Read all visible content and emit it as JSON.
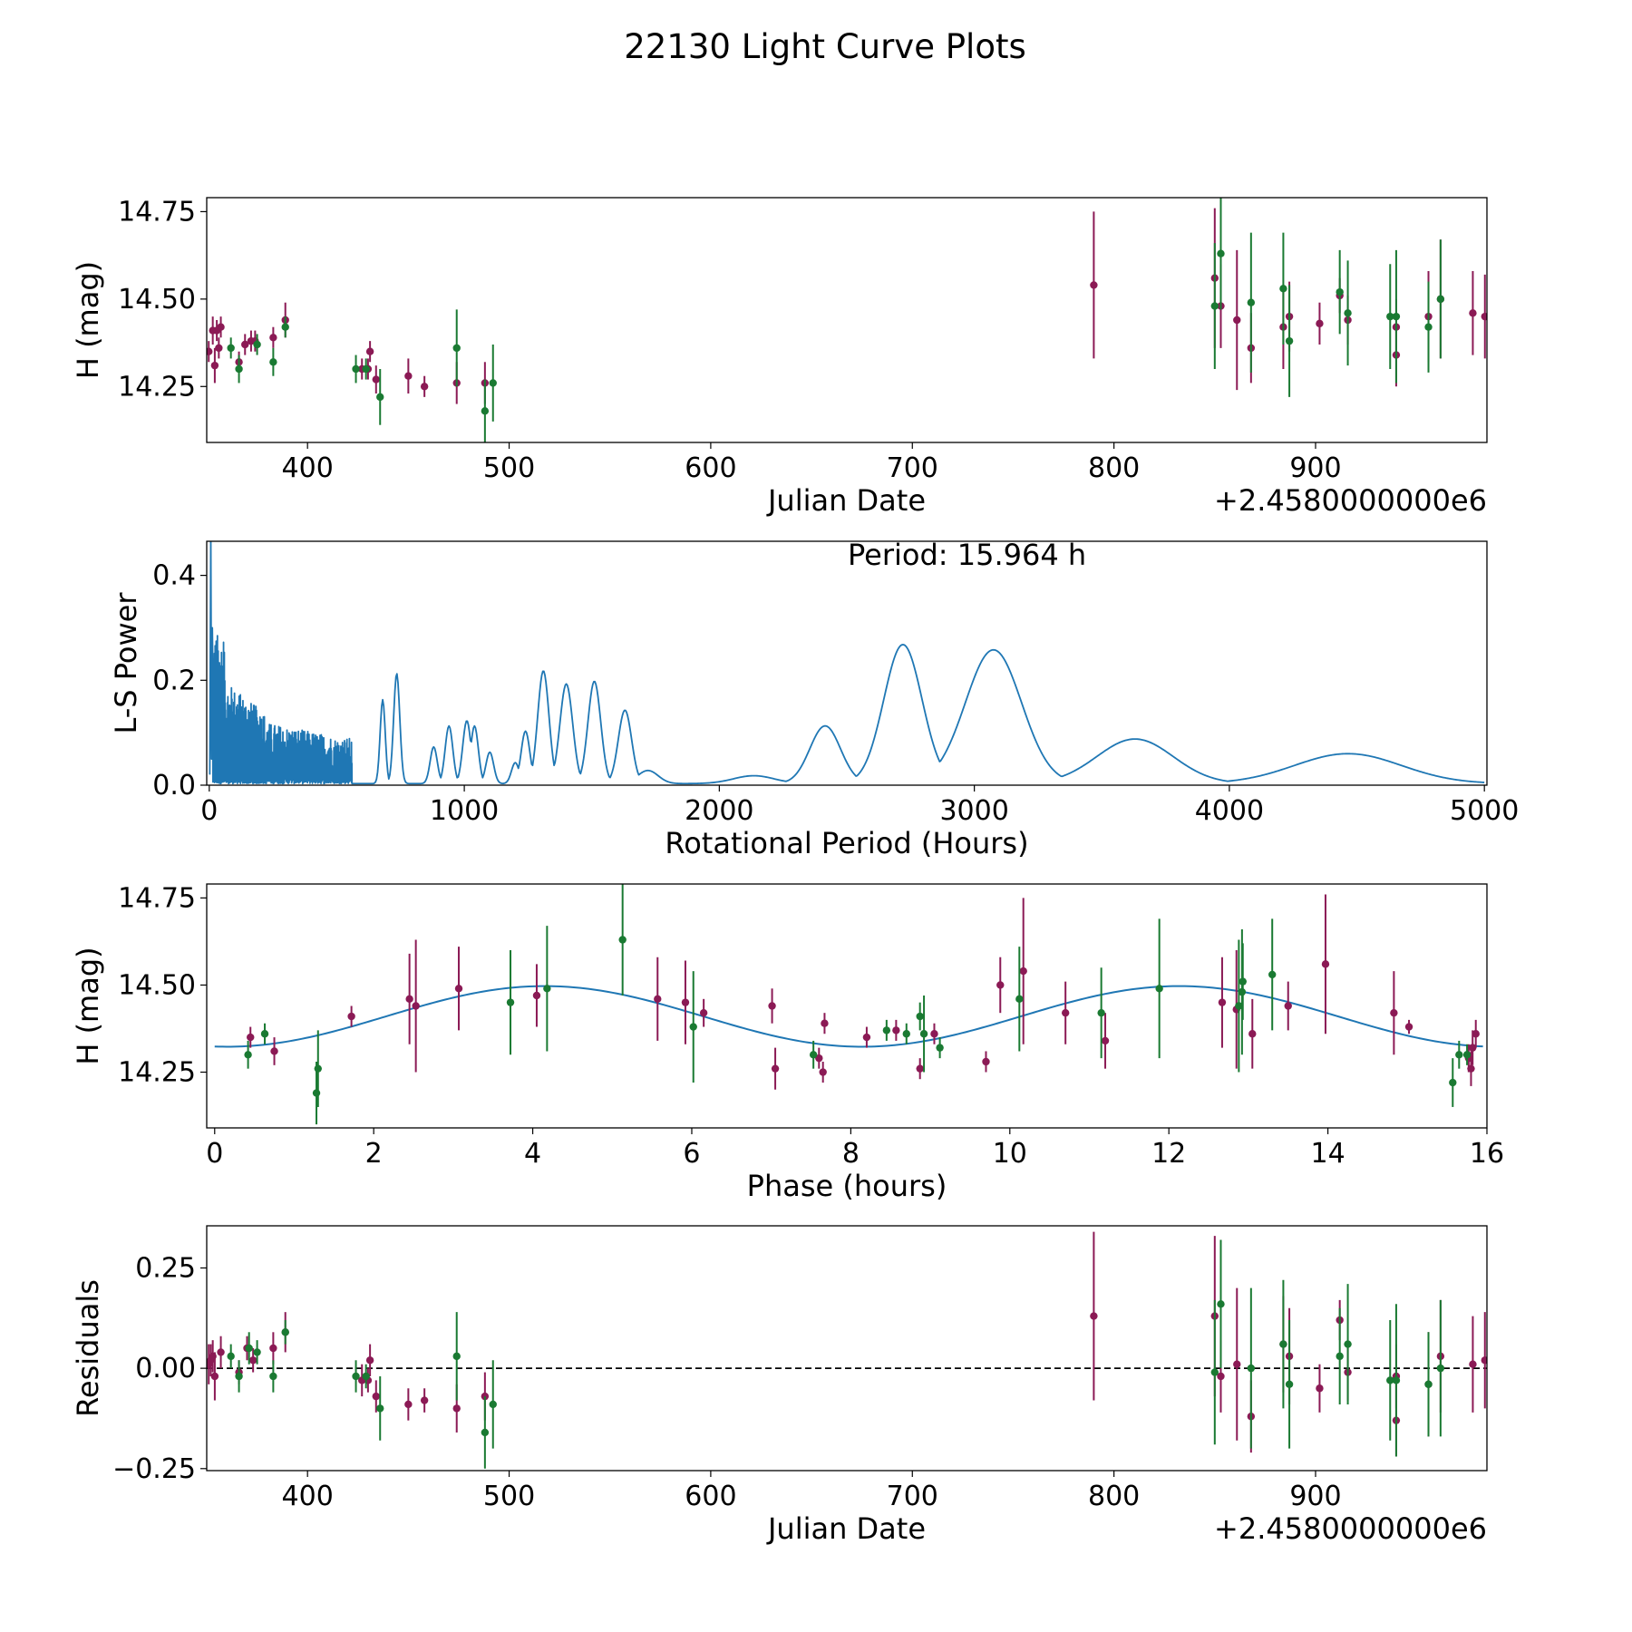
{
  "figure": {
    "title": "22130 Light Curve Plots",
    "colors": {
      "purple": "#8b1a55",
      "green": "#1a7a32",
      "curve": "#1f77b4",
      "axis": "#000000"
    }
  },
  "chart_data": [
    {
      "type": "errorbar-scatter",
      "name": "light-curve",
      "xlabel": "Julian Date",
      "ylabel": "H (mag)",
      "offset_text": "+2.4580000000e6",
      "xlim": [
        350,
        985
      ],
      "ylim": [
        14.09,
        14.79
      ],
      "xticks": [
        400,
        500,
        600,
        700,
        800,
        900
      ],
      "yticks": [
        14.25,
        14.5,
        14.75
      ],
      "series": [
        {
          "name": "purple",
          "color": "#8b1a55",
          "points": [
            [
              351,
              14.35,
              0.03
            ],
            [
              353,
              14.41,
              0.04
            ],
            [
              354,
              14.31,
              0.05
            ],
            [
              355,
              14.41,
              0.03
            ],
            [
              356,
              14.36,
              0.03
            ],
            [
              357,
              14.42,
              0.03
            ],
            [
              366,
              14.32,
              0.03
            ],
            [
              369,
              14.37,
              0.03
            ],
            [
              372,
              14.38,
              0.03
            ],
            [
              374,
              14.38,
              0.03
            ],
            [
              383,
              14.39,
              0.03
            ],
            [
              389,
              14.44,
              0.05
            ],
            [
              427,
              14.3,
              0.03
            ],
            [
              430,
              14.3,
              0.03
            ],
            [
              431,
              14.35,
              0.03
            ],
            [
              434,
              14.27,
              0.04
            ],
            [
              450,
              14.28,
              0.05
            ],
            [
              458,
              14.25,
              0.03
            ],
            [
              474,
              14.26,
              0.06
            ],
            [
              488,
              14.26,
              0.06
            ],
            [
              790,
              14.54,
              0.21
            ],
            [
              850,
              14.56,
              0.2
            ],
            [
              853,
              14.48,
              0.12
            ],
            [
              861,
              14.44,
              0.2
            ],
            [
              868,
              14.36,
              0.1
            ],
            [
              884,
              14.42,
              0.12
            ],
            [
              887,
              14.45,
              0.1
            ],
            [
              902,
              14.43,
              0.06
            ],
            [
              912,
              14.51,
              0.05
            ],
            [
              916,
              14.44,
              0.07
            ],
            [
              940,
              14.42,
              0.08
            ],
            [
              940,
              14.34,
              0.09
            ],
            [
              956,
              14.45,
              0.13
            ],
            [
              962,
              14.5,
              0.17
            ],
            [
              978,
              14.46,
              0.12
            ],
            [
              984,
              14.45,
              0.12
            ]
          ]
        },
        {
          "name": "green",
          "color": "#1a7a32",
          "points": [
            [
              362,
              14.36,
              0.03
            ],
            [
              366,
              14.3,
              0.04
            ],
            [
              375,
              14.37,
              0.03
            ],
            [
              383,
              14.32,
              0.04
            ],
            [
              389,
              14.42,
              0.03
            ],
            [
              424,
              14.3,
              0.04
            ],
            [
              429,
              14.3,
              0.03
            ],
            [
              436,
              14.22,
              0.08
            ],
            [
              474,
              14.36,
              0.11
            ],
            [
              488,
              14.18,
              0.09
            ],
            [
              492,
              14.26,
              0.11
            ],
            [
              850,
              14.48,
              0.18
            ],
            [
              853,
              14.63,
              0.16
            ],
            [
              868,
              14.49,
              0.2
            ],
            [
              884,
              14.53,
              0.16
            ],
            [
              887,
              14.38,
              0.16
            ],
            [
              912,
              14.52,
              0.12
            ],
            [
              916,
              14.46,
              0.15
            ],
            [
              937,
              14.45,
              0.15
            ],
            [
              940,
              14.45,
              0.19
            ],
            [
              956,
              14.42,
              0.13
            ],
            [
              962,
              14.5,
              0.17
            ]
          ]
        }
      ]
    },
    {
      "type": "line",
      "name": "periodogram",
      "xlabel": "Rotational Period (Hours)",
      "ylabel": "L-S Power",
      "annotation": "Period: 15.964 h",
      "xlim": [
        -10,
        5010
      ],
      "ylim": [
        0.0,
        0.465
      ],
      "xticks": [
        0,
        1000,
        2000,
        3000,
        4000,
        5000
      ],
      "yticks": [
        0.0,
        0.2,
        0.4
      ],
      "peaks": [
        [
          735,
          0.21,
          12
        ],
        [
          680,
          0.16,
          10
        ],
        [
          880,
          0.07,
          14
        ],
        [
          940,
          0.11,
          15
        ],
        [
          1010,
          0.12,
          16
        ],
        [
          1040,
          0.11,
          15
        ],
        [
          1100,
          0.06,
          15
        ],
        [
          1200,
          0.04,
          15
        ],
        [
          1240,
          0.1,
          17
        ],
        [
          1310,
          0.215,
          22
        ],
        [
          1400,
          0.19,
          25
        ],
        [
          1510,
          0.195,
          25
        ],
        [
          1630,
          0.14,
          26
        ],
        [
          1720,
          0.025,
          40
        ],
        [
          2135,
          0.015,
          80
        ],
        [
          2415,
          0.11,
          60
        ],
        [
          2720,
          0.265,
          75
        ],
        [
          3075,
          0.255,
          110
        ],
        [
          3630,
          0.085,
          150
        ],
        [
          4465,
          0.057,
          210
        ]
      ]
    },
    {
      "type": "errorbar-scatter",
      "name": "phased-curve",
      "xlabel": "Phase (hours)",
      "ylabel": "H (mag)",
      "xlim": [
        -0.1,
        16.0
      ],
      "ylim": [
        14.09,
        14.79
      ],
      "xticks": [
        0,
        2,
        4,
        6,
        8,
        10,
        12,
        14,
        16
      ],
      "yticks": [
        14.25,
        14.5,
        14.75
      ],
      "model": {
        "mean": 14.41,
        "amplitude": 0.087,
        "period": 7.982,
        "phase_of_max": 4.15
      },
      "series": [
        {
          "name": "purple",
          "color": "#8b1a55",
          "points": [
            [
              0.45,
              14.35,
              0.03
            ],
            [
              0.75,
              14.31,
              0.04
            ],
            [
              1.72,
              14.41,
              0.03
            ],
            [
              2.45,
              14.46,
              0.13
            ],
            [
              2.53,
              14.44,
              0.19
            ],
            [
              3.07,
              14.49,
              0.12
            ],
            [
              4.05,
              14.47,
              0.09
            ],
            [
              5.57,
              14.46,
              0.12
            ],
            [
              5.92,
              14.45,
              0.12
            ],
            [
              6.15,
              14.42,
              0.04
            ],
            [
              7.01,
              14.44,
              0.05
            ],
            [
              7.05,
              14.26,
              0.06
            ],
            [
              7.6,
              14.29,
              0.03
            ],
            [
              7.65,
              14.25,
              0.03
            ],
            [
              7.67,
              14.39,
              0.03
            ],
            [
              8.2,
              14.35,
              0.03
            ],
            [
              8.57,
              14.37,
              0.03
            ],
            [
              8.87,
              14.26,
              0.03
            ],
            [
              9.05,
              14.36,
              0.03
            ],
            [
              9.7,
              14.28,
              0.03
            ],
            [
              9.88,
              14.5,
              0.08
            ],
            [
              10.17,
              14.54,
              0.21
            ],
            [
              10.7,
              14.42,
              0.09
            ],
            [
              11.2,
              14.34,
              0.08
            ],
            [
              12.67,
              14.45,
              0.13
            ],
            [
              12.85,
              14.43,
              0.17
            ],
            [
              13.05,
              14.36,
              0.1
            ],
            [
              13.5,
              14.44,
              0.07
            ],
            [
              13.97,
              14.56,
              0.2
            ],
            [
              14.83,
              14.42,
              0.12
            ],
            [
              15.02,
              14.38,
              0.02
            ],
            [
              15.77,
              14.29,
              0.04
            ],
            [
              15.8,
              14.26,
              0.05
            ],
            [
              15.82,
              14.32,
              0.05
            ],
            [
              15.86,
              14.36,
              0.04
            ]
          ]
        },
        {
          "name": "green",
          "color": "#1a7a32",
          "points": [
            [
              0.42,
              14.3,
              0.04
            ],
            [
              0.63,
              14.36,
              0.03
            ],
            [
              1.28,
              14.19,
              0.09
            ],
            [
              1.3,
              14.26,
              0.11
            ],
            [
              3.72,
              14.45,
              0.15
            ],
            [
              4.18,
              14.49,
              0.18
            ],
            [
              5.13,
              14.63,
              0.16
            ],
            [
              6.02,
              14.38,
              0.16
            ],
            [
              7.53,
              14.3,
              0.04
            ],
            [
              8.45,
              14.37,
              0.03
            ],
            [
              8.7,
              14.36,
              0.03
            ],
            [
              8.87,
              14.41,
              0.04
            ],
            [
              8.92,
              14.36,
              0.11
            ],
            [
              9.12,
              14.32,
              0.03
            ],
            [
              10.12,
              14.46,
              0.15
            ],
            [
              11.15,
              14.42,
              0.13
            ],
            [
              11.88,
              14.49,
              0.2
            ],
            [
              12.88,
              14.44,
              0.19
            ],
            [
              12.92,
              14.48,
              0.18
            ],
            [
              12.93,
              14.51,
              0.11
            ],
            [
              13.3,
              14.53,
              0.16
            ],
            [
              15.57,
              14.22,
              0.07
            ],
            [
              15.65,
              14.3,
              0.04
            ],
            [
              15.75,
              14.3,
              0.03
            ]
          ]
        }
      ]
    },
    {
      "type": "errorbar-scatter",
      "name": "residuals",
      "xlabel": "Julian Date",
      "ylabel": "Residuals",
      "offset_text": "+2.4580000000e6",
      "xlim": [
        350,
        985
      ],
      "ylim": [
        -0.255,
        0.355
      ],
      "xticks": [
        400,
        500,
        600,
        700,
        800,
        900
      ],
      "yticks": [
        0.25,
        0.0,
        -0.25
      ],
      "ytick_labels": [
        "0.25",
        "0.00",
        "−0.25"
      ],
      "reference_line": 0.0,
      "series": [
        {
          "name": "purple",
          "color": "#8b1a55",
          "points": [
            [
              351,
              0.01,
              0.05
            ],
            [
              352,
              0.02,
              0.04
            ],
            [
              353,
              0.03,
              0.04
            ],
            [
              354,
              -0.02,
              0.06
            ],
            [
              357,
              0.04,
              0.04
            ],
            [
              366,
              -0.01,
              0.03
            ],
            [
              370,
              0.05,
              0.03
            ],
            [
              373,
              0.02,
              0.03
            ],
            [
              383,
              0.05,
              0.04
            ],
            [
              389,
              0.09,
              0.05
            ],
            [
              427,
              -0.03,
              0.04
            ],
            [
              430,
              -0.03,
              0.03
            ],
            [
              431,
              0.02,
              0.04
            ],
            [
              434,
              -0.07,
              0.04
            ],
            [
              450,
              -0.09,
              0.04
            ],
            [
              458,
              -0.08,
              0.03
            ],
            [
              474,
              -0.1,
              0.06
            ],
            [
              488,
              -0.07,
              0.06
            ],
            [
              790,
              0.13,
              0.21
            ],
            [
              850,
              0.13,
              0.2
            ],
            [
              853,
              -0.02,
              0.09
            ],
            [
              861,
              0.01,
              0.19
            ],
            [
              868,
              -0.12,
              0.09
            ],
            [
              884,
              0.06,
              0.12
            ],
            [
              887,
              0.03,
              0.12
            ],
            [
              902,
              -0.05,
              0.06
            ],
            [
              912,
              0.12,
              0.05
            ],
            [
              916,
              -0.01,
              0.07
            ],
            [
              940,
              -0.02,
              0.08
            ],
            [
              940,
              -0.13,
              0.09
            ],
            [
              956,
              -0.04,
              0.13
            ],
            [
              962,
              0.03,
              0.14
            ],
            [
              978,
              0.01,
              0.12
            ],
            [
              984,
              0.02,
              0.12
            ]
          ]
        },
        {
          "name": "green",
          "color": "#1a7a32",
          "points": [
            [
              362,
              0.03,
              0.03
            ],
            [
              366,
              -0.02,
              0.04
            ],
            [
              371,
              0.05,
              0.04
            ],
            [
              375,
              0.04,
              0.03
            ],
            [
              383,
              -0.02,
              0.04
            ],
            [
              389,
              0.09,
              0.03
            ],
            [
              424,
              -0.02,
              0.04
            ],
            [
              429,
              -0.02,
              0.03
            ],
            [
              436,
              -0.1,
              0.08
            ],
            [
              474,
              0.03,
              0.11
            ],
            [
              488,
              -0.16,
              0.09
            ],
            [
              492,
              -0.09,
              0.11
            ],
            [
              850,
              -0.01,
              0.18
            ],
            [
              853,
              0.16,
              0.16
            ],
            [
              868,
              0.0,
              0.2
            ],
            [
              884,
              0.06,
              0.16
            ],
            [
              887,
              -0.04,
              0.16
            ],
            [
              912,
              0.03,
              0.12
            ],
            [
              916,
              0.06,
              0.15
            ],
            [
              937,
              -0.03,
              0.15
            ],
            [
              940,
              -0.03,
              0.19
            ],
            [
              956,
              -0.04,
              0.13
            ],
            [
              962,
              0.0,
              0.17
            ]
          ]
        }
      ]
    }
  ]
}
